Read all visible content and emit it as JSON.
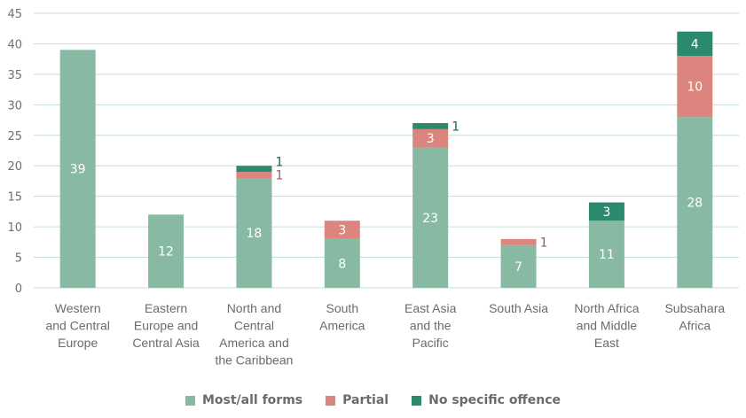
{
  "chart_data": {
    "type": "bar",
    "stacked": true,
    "categories": [
      [
        "Western",
        "and Central",
        "Europe"
      ],
      [
        "Eastern",
        "Europe and",
        "Central Asia"
      ],
      [
        "North and",
        "Central",
        "America and",
        "the Caribbean"
      ],
      [
        "South",
        "America"
      ],
      [
        "East Asia",
        "and the",
        "Pacific"
      ],
      [
        "South Asia"
      ],
      [
        "North Africa",
        "and Middle",
        "East"
      ],
      [
        "Subsahara",
        "Africa"
      ]
    ],
    "series": [
      {
        "name": "Most/all forms",
        "color": "#88b9a3",
        "values": [
          39,
          12,
          18,
          8,
          23,
          7,
          11,
          28
        ]
      },
      {
        "name": "Partial",
        "color": "#dc857f",
        "values": [
          0,
          0,
          1,
          3,
          3,
          1,
          0,
          10
        ]
      },
      {
        "name": "No specific offence",
        "color": "#2b8a6e",
        "values": [
          0,
          0,
          1,
          0,
          1,
          0,
          3,
          4
        ]
      }
    ],
    "ylim": [
      0,
      45
    ],
    "yticks": [
      0,
      5,
      10,
      15,
      20,
      25,
      30,
      35,
      40,
      45
    ],
    "grid": true,
    "legend": "bottom",
    "title": "",
    "xlabel": "",
    "ylabel": ""
  }
}
